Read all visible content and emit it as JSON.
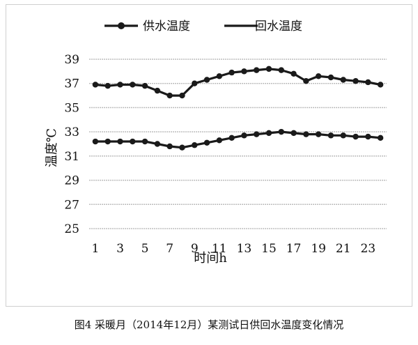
{
  "caption": "图4 采暖月（2014年12月）某测试日供回水温度变化情况",
  "chart_data": {
    "type": "line",
    "xlabel": "时间h",
    "ylabel": "温度℃",
    "ylim": [
      25,
      39
    ],
    "yticks": [
      25,
      27,
      29,
      31,
      33,
      35,
      37,
      39
    ],
    "xtick_labels": [
      "1",
      "3",
      "5",
      "7",
      "9",
      "11",
      "13",
      "15",
      "17",
      "19",
      "21",
      "23"
    ],
    "grid": true,
    "legend_position": "top",
    "x": [
      1,
      2,
      3,
      4,
      5,
      6,
      7,
      8,
      9,
      10,
      11,
      12,
      13,
      14,
      15,
      16,
      17,
      18,
      19,
      20,
      21,
      22,
      23,
      24
    ],
    "series": [
      {
        "name": "供水温度",
        "color": "#1a1a1a",
        "values": [
          36.9,
          36.8,
          36.9,
          36.9,
          36.8,
          36.4,
          36.0,
          36.0,
          37.0,
          37.3,
          37.6,
          37.9,
          38.0,
          38.1,
          38.2,
          38.1,
          37.8,
          37.2,
          37.6,
          37.5,
          37.3,
          37.2,
          37.1,
          36.9
        ]
      },
      {
        "name": "回水温度",
        "color": "#1a1a1a",
        "values": [
          32.2,
          32.2,
          32.2,
          32.2,
          32.2,
          32.0,
          31.8,
          31.7,
          31.9,
          32.1,
          32.3,
          32.5,
          32.7,
          32.8,
          32.9,
          33.0,
          32.9,
          32.8,
          32.8,
          32.7,
          32.7,
          32.6,
          32.6,
          32.5
        ]
      }
    ]
  }
}
